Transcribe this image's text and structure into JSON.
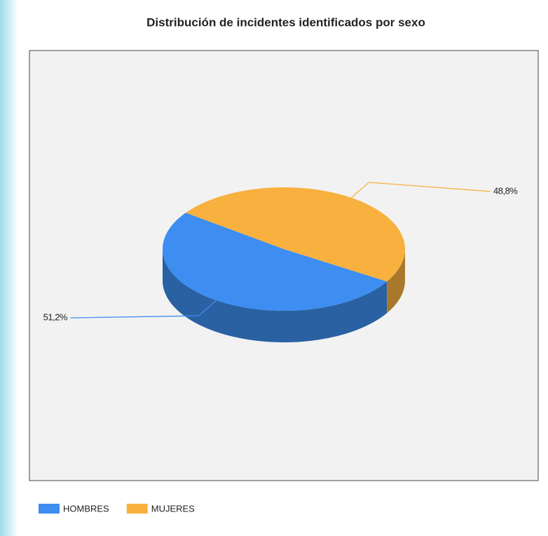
{
  "chart_data": {
    "type": "pie",
    "title": "Distribución de incidentes identificados por sexo",
    "categories": [
      "HOMBRES",
      "MUJERES"
    ],
    "values": [
      51.2,
      48.8
    ],
    "value_labels": [
      "51,2%",
      "48,8%"
    ],
    "colors": [
      "#3d8ef0",
      "#f8b13f"
    ],
    "legend": "bottom-left"
  }
}
